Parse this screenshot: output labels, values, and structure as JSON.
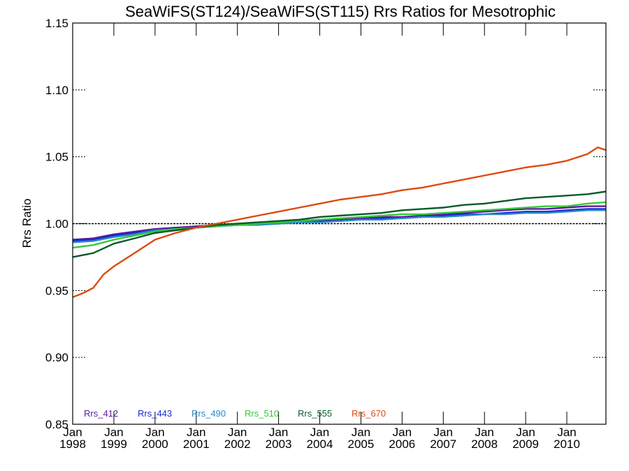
{
  "chart_data": {
    "type": "line",
    "title": "SeaWiFS(ST124)/SeaWiFS(ST115)  Rrs Ratios for Mesotrophic",
    "ylabel": "Rrs Ratio",
    "xlabel": "",
    "xlim": [
      1998.0,
      2010.95
    ],
    "ylim": [
      0.85,
      1.15
    ],
    "y_ticks": [
      0.85,
      0.9,
      0.95,
      1.0,
      1.05,
      1.1,
      1.15
    ],
    "y_tick_labels": [
      "0.85",
      "0.90",
      "0.95",
      "1.00",
      "1.05",
      "1.10",
      "1.15"
    ],
    "x_ticks": [
      {
        "value": 1998,
        "month": "Jan",
        "year": "1998"
      },
      {
        "value": 1999,
        "month": "Jan",
        "year": "1999"
      },
      {
        "value": 2000,
        "month": "Jan",
        "year": "2000"
      },
      {
        "value": 2001,
        "month": "Jan",
        "year": "2001"
      },
      {
        "value": 2002,
        "month": "Jan",
        "year": "2002"
      },
      {
        "value": 2003,
        "month": "Jan",
        "year": "2003"
      },
      {
        "value": 2004,
        "month": "Jan",
        "year": "2004"
      },
      {
        "value": 2005,
        "month": "Jan",
        "year": "2005"
      },
      {
        "value": 2006,
        "month": "Jan",
        "year": "2006"
      },
      {
        "value": 2007,
        "month": "Jan",
        "year": "2007"
      },
      {
        "value": 2008,
        "month": "Jan",
        "year": "2008"
      },
      {
        "value": 2009,
        "month": "Jan",
        "year": "2009"
      },
      {
        "value": 2010,
        "month": "Jan",
        "year": "2010"
      }
    ],
    "reference_line": 1.0,
    "grid": false,
    "legend_position": "bottom-left",
    "series": [
      {
        "name": "Rrs_412",
        "color": "#5a1a9a",
        "x": [
          1998.0,
          1998.5,
          1999.0,
          1999.5,
          2000.0,
          2000.5,
          2001.0,
          2001.5,
          2002.0,
          2002.5,
          2003.0,
          2003.5,
          2004.0,
          2004.5,
          2005.0,
          2005.5,
          2006.0,
          2006.5,
          2007.0,
          2007.5,
          2008.0,
          2008.5,
          2009.0,
          2009.5,
          2010.0,
          2010.5,
          2010.95
        ],
        "y": [
          0.988,
          0.989,
          0.992,
          0.994,
          0.996,
          0.997,
          0.998,
          0.999,
          0.999,
          1.0,
          1.001,
          1.002,
          1.003,
          1.003,
          1.004,
          1.005,
          1.005,
          1.006,
          1.007,
          1.008,
          1.009,
          1.01,
          1.011,
          1.011,
          1.012,
          1.013,
          1.013
        ]
      },
      {
        "name": "Rrs_443",
        "color": "#1a2ad2",
        "x": [
          1998.0,
          1998.5,
          1999.0,
          1999.5,
          2000.0,
          2000.5,
          2001.0,
          2001.5,
          2002.0,
          2002.5,
          2003.0,
          2003.5,
          2004.0,
          2004.5,
          2005.0,
          2005.5,
          2006.0,
          2006.5,
          2007.0,
          2007.5,
          2008.0,
          2008.5,
          2009.0,
          2009.5,
          2010.0,
          2010.5,
          2010.95
        ],
        "y": [
          0.987,
          0.988,
          0.991,
          0.993,
          0.995,
          0.996,
          0.997,
          0.998,
          0.999,
          1.0,
          1.0,
          1.001,
          1.002,
          1.002,
          1.003,
          1.004,
          1.004,
          1.005,
          1.006,
          1.007,
          1.007,
          1.008,
          1.009,
          1.009,
          1.01,
          1.011,
          1.011
        ]
      },
      {
        "name": "Rrs_490",
        "color": "#2a8ac8",
        "x": [
          1998.0,
          1998.5,
          1999.0,
          1999.5,
          2000.0,
          2000.5,
          2001.0,
          2001.5,
          2002.0,
          2002.5,
          2003.0,
          2003.5,
          2004.0,
          2004.5,
          2005.0,
          2005.5,
          2006.0,
          2006.5,
          2007.0,
          2007.5,
          2008.0,
          2008.5,
          2009.0,
          2009.5,
          2010.0,
          2010.5,
          2010.95
        ],
        "y": [
          0.986,
          0.987,
          0.99,
          0.992,
          0.995,
          0.996,
          0.997,
          0.998,
          0.999,
          0.999,
          1.0,
          1.001,
          1.001,
          1.002,
          1.003,
          1.003,
          1.004,
          1.005,
          1.005,
          1.006,
          1.007,
          1.007,
          1.008,
          1.008,
          1.009,
          1.01,
          1.01
        ]
      },
      {
        "name": "Rrs_510",
        "color": "#38c838",
        "x": [
          1998.0,
          1998.5,
          1999.0,
          1999.5,
          2000.0,
          2000.5,
          2001.0,
          2001.5,
          2002.0,
          2002.5,
          2003.0,
          2003.5,
          2004.0,
          2004.5,
          2005.0,
          2005.5,
          2006.0,
          2006.5,
          2007.0,
          2007.5,
          2008.0,
          2008.5,
          2009.0,
          2009.5,
          2010.0,
          2010.5,
          2010.95
        ],
        "y": [
          0.982,
          0.984,
          0.988,
          0.991,
          0.994,
          0.996,
          0.997,
          0.998,
          0.999,
          1.0,
          1.001,
          1.002,
          1.003,
          1.004,
          1.005,
          1.006,
          1.007,
          1.007,
          1.008,
          1.009,
          1.01,
          1.011,
          1.012,
          1.013,
          1.013,
          1.015,
          1.016
        ]
      },
      {
        "name": "Rrs_555",
        "color": "#0a5a2a",
        "x": [
          1998.0,
          1998.5,
          1999.0,
          1999.5,
          2000.0,
          2000.5,
          2001.0,
          2001.5,
          2002.0,
          2002.5,
          2003.0,
          2003.5,
          2004.0,
          2004.5,
          2005.0,
          2005.5,
          2006.0,
          2006.5,
          2007.0,
          2007.5,
          2008.0,
          2008.5,
          2009.0,
          2009.5,
          2010.0,
          2010.5,
          2010.95
        ],
        "y": [
          0.975,
          0.978,
          0.985,
          0.989,
          0.993,
          0.995,
          0.997,
          0.999,
          1.0,
          1.001,
          1.002,
          1.003,
          1.005,
          1.006,
          1.007,
          1.008,
          1.01,
          1.011,
          1.012,
          1.014,
          1.015,
          1.017,
          1.019,
          1.02,
          1.021,
          1.022,
          1.024
        ]
      },
      {
        "name": "Rrs_670",
        "color": "#dd4a10",
        "x": [
          1998.0,
          1998.25,
          1998.5,
          1998.75,
          1999.0,
          1999.25,
          1999.5,
          1999.75,
          2000.0,
          2000.5,
          2001.0,
          2001.5,
          2002.0,
          2002.5,
          2003.0,
          2003.5,
          2004.0,
          2004.5,
          2005.0,
          2005.5,
          2006.0,
          2006.5,
          2007.0,
          2007.5,
          2008.0,
          2008.5,
          2009.0,
          2009.5,
          2010.0,
          2010.5,
          2010.75,
          2010.95
        ],
        "y": [
          0.945,
          0.948,
          0.952,
          0.962,
          0.968,
          0.973,
          0.978,
          0.983,
          0.988,
          0.993,
          0.997,
          1.0,
          1.003,
          1.006,
          1.009,
          1.012,
          1.015,
          1.018,
          1.02,
          1.022,
          1.025,
          1.027,
          1.03,
          1.033,
          1.036,
          1.039,
          1.042,
          1.044,
          1.047,
          1.052,
          1.057,
          1.055
        ]
      }
    ]
  }
}
